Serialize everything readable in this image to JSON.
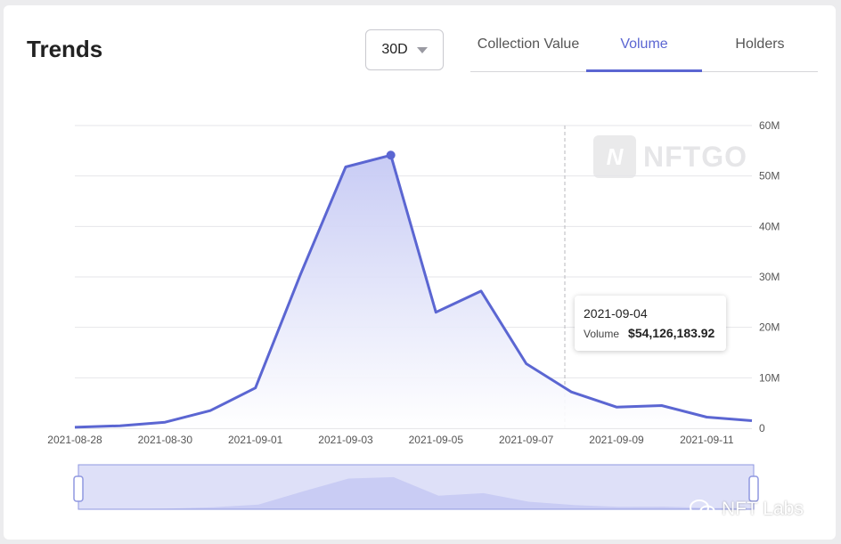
{
  "header": {
    "title": "Trends",
    "period": "30D"
  },
  "tabs": [
    {
      "label": "Collection Value",
      "active": false
    },
    {
      "label": "Volume",
      "active": true
    },
    {
      "label": "Holders",
      "active": false
    }
  ],
  "tooltip": {
    "date": "2021-09-04",
    "label": "Volume",
    "value": "$54,126,183.92"
  },
  "watermark": {
    "text": "NFTGO"
  },
  "brand": {
    "text": "NFT Labs"
  },
  "icons": {
    "dropdown": "chevron-down-icon",
    "watermark_logo": "nftgo-logo-icon",
    "brand_logo": "wechat-icon"
  },
  "colors": {
    "accent": "#5b66d2",
    "area_top": "#c5c9f4",
    "area_bottom": "#ffffff",
    "grid": "#e6e6ea",
    "slider_fill": "#c9cdf4"
  },
  "chart_data": {
    "type": "area",
    "x": [
      "2021-08-28",
      "2021-08-29",
      "2021-08-30",
      "2021-08-31",
      "2021-09-01",
      "2021-09-02",
      "2021-09-03",
      "2021-09-04",
      "2021-09-05",
      "2021-09-06",
      "2021-09-07",
      "2021-09-08",
      "2021-09-09",
      "2021-09-10",
      "2021-09-11",
      "2021-09-12"
    ],
    "series": [
      {
        "name": "Volume",
        "values": [
          0.2,
          0.5,
          1.2,
          3.5,
          8.0,
          30.5,
          51.8,
          54.13,
          23.0,
          27.2,
          12.8,
          7.2,
          4.2,
          4.5,
          2.2,
          1.5
        ]
      }
    ],
    "x_tick_labels": [
      "2021-08-28",
      "2021-08-30",
      "2021-09-01",
      "2021-09-03",
      "2021-09-05",
      "2021-09-07",
      "2021-09-09",
      "2021-09-11"
    ],
    "y_ticks": [
      0,
      10,
      20,
      30,
      40,
      50,
      60
    ],
    "y_tick_labels": [
      "0",
      "10M",
      "20M",
      "30M",
      "40M",
      "50M",
      "60M"
    ],
    "ylim": [
      0,
      60
    ],
    "y_unit": "M",
    "highlight_index": 7,
    "grid": true,
    "legend": "none",
    "title": "",
    "xlabel": "",
    "ylabel": ""
  }
}
